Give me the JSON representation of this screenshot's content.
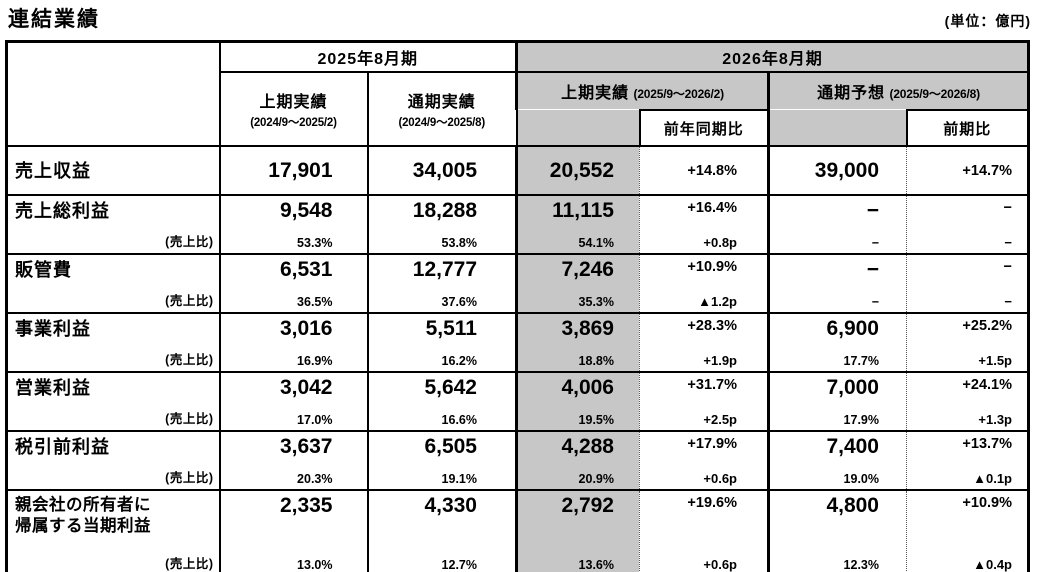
{
  "page": {
    "title": "連結業績",
    "unit_label": "(単位：億円)"
  },
  "colors": {
    "highlight_gray": "#c7c7c7",
    "border_black": "#000000"
  },
  "table": {
    "header": {
      "fy2025_group": "2025年8月期",
      "fy2026_group": "2026年8月期",
      "h1_2025_label": "上期実績",
      "h1_2025_period": "(2024/9～2025/2)",
      "full_2025_label": "通期実績",
      "full_2025_period": "(2024/9～2025/8)",
      "h1_2026_label": "上期実績",
      "h1_2026_period": "(2025/9～2026/2)",
      "forecast_label": "通期予想",
      "forecast_period": "(2025/9～2026/8)",
      "yoy_label": "前年同期比",
      "prior_period_label": "前期比"
    },
    "rows": [
      {
        "name": "売上収益",
        "h1_2025": "17,901",
        "fy_2025": "34,005",
        "h1_2026": "20,552",
        "h1_yoy": "+14.8%",
        "fc_2026": "39,000",
        "fc_yoy": "+14.7%"
      },
      {
        "name": "売上総利益",
        "ratio_caption": "(売上比)",
        "h1_2025": "9,548",
        "h1_2025_ratio": "53.3%",
        "fy_2025": "18,288",
        "fy_2025_ratio": "53.8%",
        "h1_2026": "11,115",
        "h1_2026_ratio": "54.1%",
        "h1_yoy": "+16.4%",
        "h1_yoy_pt": "+0.8p",
        "fc_2026": "−",
        "fc_2026_ratio": "−",
        "fc_yoy": "−",
        "fc_yoy_pt": "−"
      },
      {
        "name": "販管費",
        "ratio_caption": "(売上比)",
        "h1_2025": "6,531",
        "h1_2025_ratio": "36.5%",
        "fy_2025": "12,777",
        "fy_2025_ratio": "37.6%",
        "h1_2026": "7,246",
        "h1_2026_ratio": "35.3%",
        "h1_yoy": "+10.9%",
        "h1_yoy_pt": "▲1.2p",
        "fc_2026": "−",
        "fc_2026_ratio": "−",
        "fc_yoy": "−",
        "fc_yoy_pt": "−"
      },
      {
        "name": "事業利益",
        "ratio_caption": "(売上比)",
        "h1_2025": "3,016",
        "h1_2025_ratio": "16.9%",
        "fy_2025": "5,511",
        "fy_2025_ratio": "16.2%",
        "h1_2026": "3,869",
        "h1_2026_ratio": "18.8%",
        "h1_yoy": "+28.3%",
        "h1_yoy_pt": "+1.9p",
        "fc_2026": "6,900",
        "fc_2026_ratio": "17.7%",
        "fc_yoy": "+25.2%",
        "fc_yoy_pt": "+1.5p"
      },
      {
        "name": "営業利益",
        "ratio_caption": "(売上比)",
        "h1_2025": "3,042",
        "h1_2025_ratio": "17.0%",
        "fy_2025": "5,642",
        "fy_2025_ratio": "16.6%",
        "h1_2026": "4,006",
        "h1_2026_ratio": "19.5%",
        "h1_yoy": "+31.7%",
        "h1_yoy_pt": "+2.5p",
        "fc_2026": "7,000",
        "fc_2026_ratio": "17.9%",
        "fc_yoy": "+24.1%",
        "fc_yoy_pt": "+1.3p"
      },
      {
        "name": "税引前利益",
        "ratio_caption": "(売上比)",
        "h1_2025": "3,637",
        "h1_2025_ratio": "20.3%",
        "fy_2025": "6,505",
        "fy_2025_ratio": "19.1%",
        "h1_2026": "4,288",
        "h1_2026_ratio": "20.9%",
        "h1_yoy": "+17.9%",
        "h1_yoy_pt": "+0.6p",
        "fc_2026": "7,400",
        "fc_2026_ratio": "19.0%",
        "fc_yoy": "+13.7%",
        "fc_yoy_pt": "▲0.1p"
      },
      {
        "name": "親会社の所有者に\n帰属する当期利益",
        "ratio_caption": "(売上比)",
        "h1_2025": "2,335",
        "h1_2025_ratio": "13.0%",
        "fy_2025": "4,330",
        "fy_2025_ratio": "12.7%",
        "h1_2026": "2,792",
        "h1_2026_ratio": "13.6%",
        "h1_yoy": "+19.6%",
        "h1_yoy_pt": "+0.6p",
        "fc_2026": "4,800",
        "fc_2026_ratio": "12.3%",
        "fc_yoy": "+10.9%",
        "fc_yoy_pt": "▲0.4p"
      }
    ]
  }
}
